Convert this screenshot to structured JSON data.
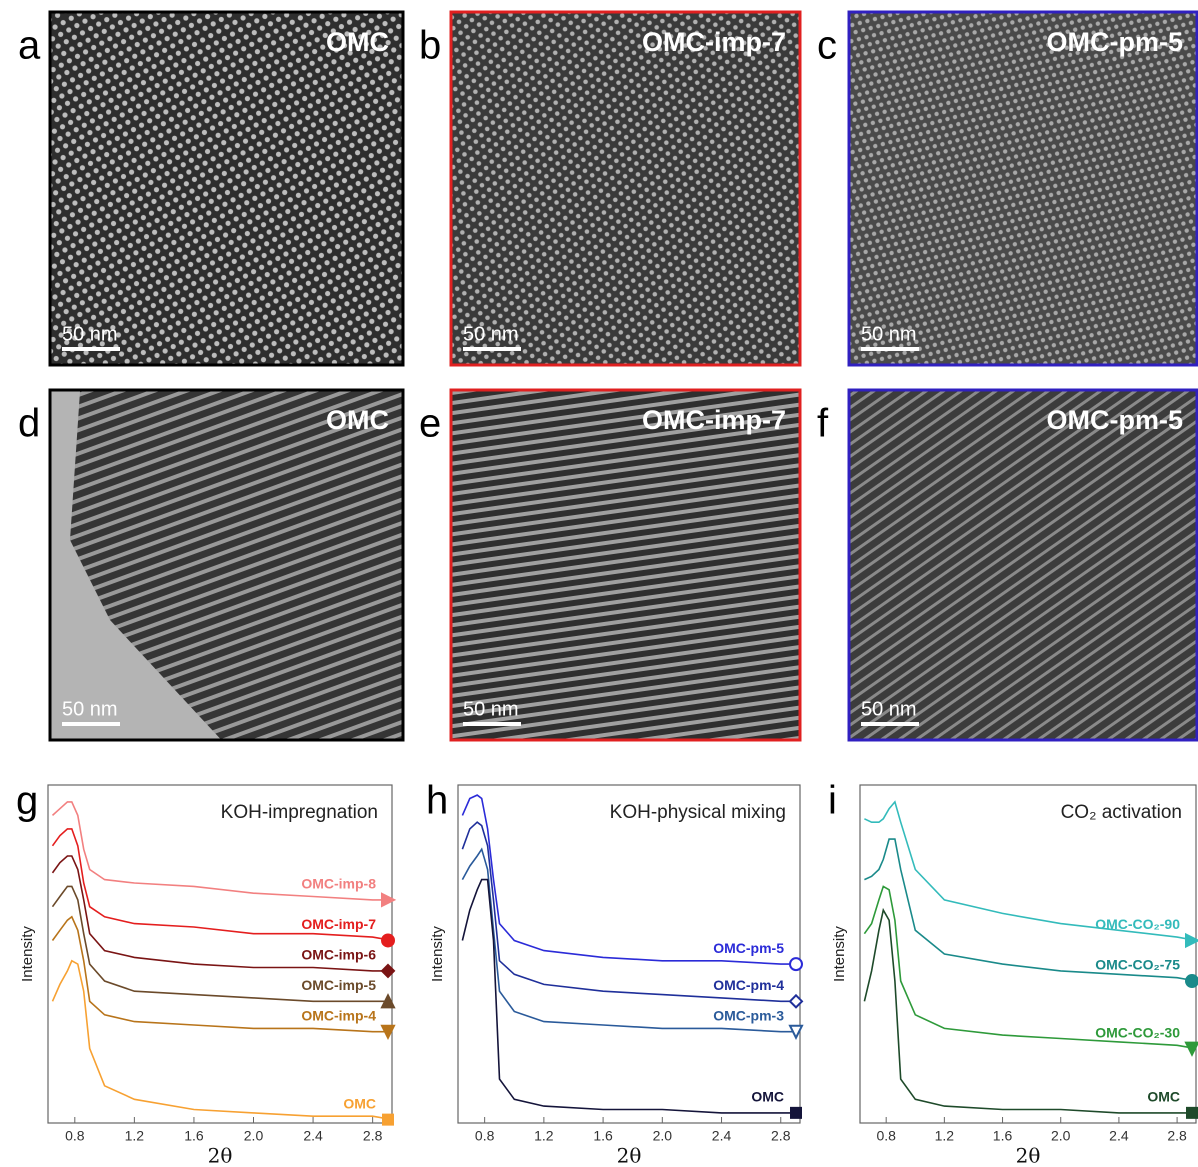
{
  "images": [
    {
      "letter": "a",
      "label": "OMC",
      "scale_bar": "50 nm"
    },
    {
      "letter": "b",
      "label": "OMC-imp-7",
      "scale_bar": "50 nm"
    },
    {
      "letter": "c",
      "label": "OMC-pm-5",
      "scale_bar": "50 nm"
    },
    {
      "letter": "d",
      "label": "OMC",
      "scale_bar": "50 nm"
    },
    {
      "letter": "e",
      "label": "OMC-imp-7",
      "scale_bar": "50 nm"
    },
    {
      "letter": "f",
      "label": "OMC-pm-5",
      "scale_bar": "50 nm"
    }
  ],
  "chart_data": [
    {
      "type": "line",
      "letter": "g",
      "title": "KOH-impregnation",
      "ylabel": "Intensity",
      "xlabel": "2θ",
      "xlim": [
        0.62,
        2.93
      ],
      "ylim": [
        0,
        100
      ],
      "xticks": [
        0.8,
        1.2,
        1.6,
        {
          "value": 2,
          "label": "2.0"
        },
        2.4,
        2.8
      ],
      "x": [
        0.65,
        0.7,
        0.75,
        0.78,
        0.82,
        0.86,
        0.9,
        1.0,
        1.2,
        1.6,
        2.0,
        2.4,
        2.8,
        2.93
      ],
      "series": [
        {
          "name": "OMC-imp-8",
          "color": "#f28080",
          "marker": "triangle-right",
          "values": [
            91,
            93,
            95,
            95,
            91,
            81,
            75,
            72,
            71,
            70,
            68,
            67,
            66,
            66
          ]
        },
        {
          "name": "OMC-imp-7",
          "color": "#e41e1e",
          "marker": "circle",
          "values": [
            82,
            85,
            87,
            87,
            82,
            71,
            64,
            61,
            59,
            58,
            56,
            56,
            55,
            54
          ]
        },
        {
          "name": "OMC-imp-6",
          "color": "#7a1414",
          "marker": "diamond",
          "values": [
            74,
            77,
            79,
            79,
            75,
            66,
            56,
            51,
            49,
            47,
            46,
            46,
            45,
            45
          ]
        },
        {
          "name": "OMC-imp-5",
          "color": "#6b4a2a",
          "marker": "triangle-up",
          "values": [
            64,
            67,
            70,
            70,
            66,
            56,
            47,
            42,
            39,
            38,
            37,
            36,
            36,
            36
          ]
        },
        {
          "name": "OMC-imp-4",
          "color": "#b8741a",
          "marker": "triangle-down",
          "values": [
            54,
            57,
            60,
            61,
            57,
            48,
            36,
            32,
            30,
            29,
            28,
            28,
            27,
            27
          ]
        },
        {
          "name": "OMC",
          "color": "#f7a132",
          "marker": "square",
          "values": [
            36,
            41,
            45,
            48,
            47,
            39,
            22,
            11,
            7,
            4,
            3,
            2,
            2,
            1
          ]
        }
      ]
    },
    {
      "type": "line",
      "letter": "h",
      "title": "KOH-physical mixing",
      "ylabel": "Intensity",
      "xlabel": "2θ",
      "xlim": [
        0.62,
        2.93
      ],
      "ylim": [
        0,
        100
      ],
      "xticks": [
        0.8,
        1.2,
        1.6,
        {
          "value": 2,
          "label": "2.0"
        },
        2.4,
        2.8
      ],
      "x": [
        0.65,
        0.7,
        0.75,
        0.78,
        0.82,
        0.86,
        0.9,
        1.0,
        1.2,
        1.6,
        2.0,
        2.4,
        2.8,
        2.93
      ],
      "series": [
        {
          "name": "OMC-pm-5",
          "color": "#2b2bd8",
          "marker": "circle-open",
          "values": [
            91,
            96,
            97,
            96,
            87,
            72,
            59,
            54,
            51,
            49,
            48,
            48,
            47,
            47
          ]
        },
        {
          "name": "OMC-pm-4",
          "color": "#1f2f9a",
          "marker": "diamond-open",
          "values": [
            81,
            87,
            89,
            88,
            82,
            66,
            48,
            44,
            41,
            39,
            38,
            37,
            36,
            36
          ]
        },
        {
          "name": "OMC-pm-3",
          "color": "#2a5a9a",
          "marker": "triangle-down-open",
          "values": [
            72,
            76,
            79,
            81,
            75,
            57,
            39,
            33,
            30,
            29,
            28,
            28,
            27,
            27
          ]
        },
        {
          "name": "OMC",
          "color": "#14143a",
          "marker": "square",
          "values": [
            54,
            63,
            69,
            72,
            72,
            54,
            13,
            7,
            5,
            4,
            4,
            3,
            3,
            3
          ]
        }
      ]
    },
    {
      "type": "line",
      "letter": "i",
      "title": "CO₂ activation",
      "ylabel": "Intensity",
      "xlabel": "2θ",
      "xlim": [
        0.62,
        2.93
      ],
      "ylim": [
        0,
        100
      ],
      "xticks": [
        0.8,
        1.2,
        1.6,
        {
          "value": 2,
          "label": "2.0"
        },
        2.4,
        2.8
      ],
      "x": [
        0.65,
        0.7,
        0.75,
        0.78,
        0.82,
        0.86,
        0.9,
        1.0,
        1.2,
        1.6,
        2.0,
        2.4,
        2.8,
        2.93
      ],
      "series": [
        {
          "name": "OMC-CO₂-90",
          "color": "#33bbbb",
          "marker": "triangle-right",
          "values": [
            90,
            89,
            89,
            90,
            93,
            95,
            89,
            75,
            66,
            62,
            59,
            57,
            55,
            54
          ]
        },
        {
          "name": "OMC-CO₂-75",
          "color": "#1a8a8a",
          "marker": "circle-half",
          "values": [
            72,
            73,
            75,
            78,
            84,
            84,
            75,
            57,
            50,
            47,
            45,
            44,
            43,
            42
          ]
        },
        {
          "name": "OMC-CO₂-30",
          "color": "#2e9a3a",
          "marker": "triangle-down",
          "values": [
            56,
            59,
            66,
            70,
            69,
            60,
            42,
            32,
            28,
            26,
            25,
            24,
            23,
            22
          ]
        },
        {
          "name": "OMC",
          "color": "#1e4a2a",
          "marker": "square",
          "values": [
            36,
            45,
            57,
            63,
            60,
            42,
            13,
            7,
            5,
            4,
            4,
            3,
            3,
            3
          ]
        }
      ]
    }
  ]
}
